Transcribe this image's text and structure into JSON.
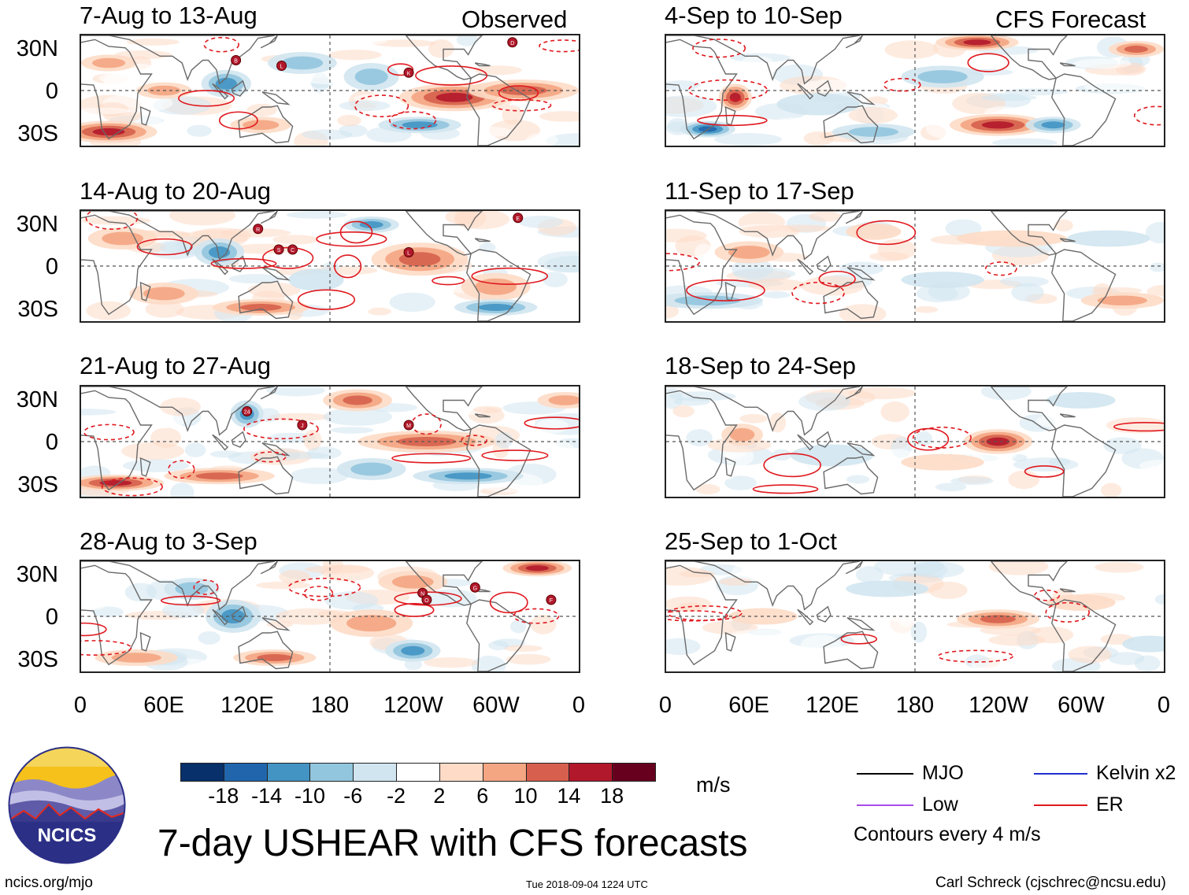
{
  "chart_data": {
    "type": "heatmap",
    "title": "7-day USHEAR with CFS forecasts",
    "units": "m/s",
    "columns": [
      {
        "label": "Observed",
        "panels": [
          {
            "title": "7-Aug to 13-Aug",
            "storm_markers": [
              "B",
              "L",
              "K",
              "D"
            ]
          },
          {
            "title": "14-Aug to 20-Aug",
            "storm_markers": [
              "R",
              "S",
              "C",
              "L",
              "E"
            ]
          },
          {
            "title": "21-Aug to 27-Aug",
            "storm_markers": [
              "24",
              "J",
              "M"
            ]
          },
          {
            "title": "28-Aug to 3-Sep",
            "storm_markers": [
              "N",
              "O",
              "G",
              "F"
            ]
          }
        ]
      },
      {
        "label": "CFS Forecast",
        "panels": [
          {
            "title": "4-Sep to 10-Sep",
            "storm_markers": []
          },
          {
            "title": "11-Sep to 17-Sep",
            "storm_markers": []
          },
          {
            "title": "18-Sep to 24-Sep",
            "storm_markers": []
          },
          {
            "title": "25-Sep to 1-Oct",
            "storm_markers": []
          }
        ]
      }
    ],
    "lat_ticks": [
      "30N",
      "0",
      "30S"
    ],
    "lat_values": [
      30,
      0,
      -30
    ],
    "lat_range": [
      -40,
      40
    ],
    "lon_ticks": [
      "0",
      "60E",
      "120E",
      "180",
      "120W",
      "60W",
      "0"
    ],
    "lon_values": [
      0,
      60,
      120,
      180,
      240,
      300,
      360
    ],
    "lon_range": [
      0,
      360
    ],
    "colorbar": {
      "labels": [
        "-18",
        "-14",
        "-10",
        "-6",
        "-2",
        "2",
        "6",
        "10",
        "14",
        "18"
      ],
      "colors": [
        "#08306b",
        "#2166ac",
        "#4393c3",
        "#92c5de",
        "#d1e5f0",
        "#ffffff",
        "#fddbc7",
        "#f4a582",
        "#d6604d",
        "#b2182b",
        "#67001f"
      ]
    },
    "legend": [
      {
        "label": "MJO",
        "color": "#000000"
      },
      {
        "label": "Kelvin x2",
        "color": "#1f2fd0"
      },
      {
        "label": "Low",
        "color": "#a64de8"
      },
      {
        "label": "ER",
        "color": "#e0191f"
      }
    ],
    "contour_note": "Contours every 4 m/s"
  },
  "footer": {
    "url": "ncics.org/mjo",
    "timestamp": "Tue 2018-09-04 1224 UTC",
    "credit": "Carl Schreck (cjschrec@ncsu.edu)",
    "logo_text": "NCICS"
  }
}
